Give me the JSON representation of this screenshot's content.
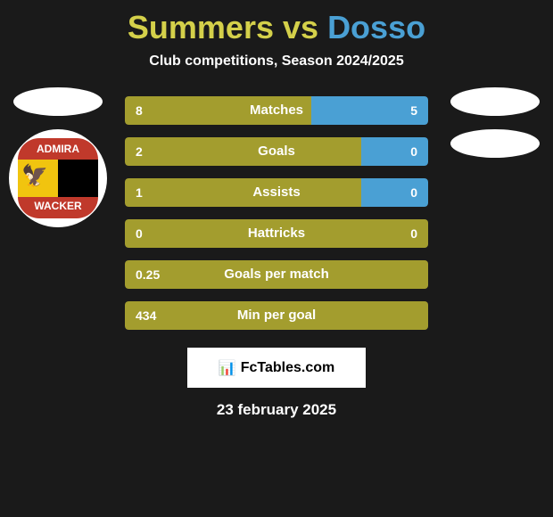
{
  "title": {
    "player1": "Summers",
    "vs": "vs",
    "player2": "Dosso"
  },
  "subtitle": "Club competitions, Season 2024/2025",
  "club_logo": {
    "top_text": "ADMIRA",
    "bottom_text": "WACKER",
    "top_bg": "#c0392b",
    "left_bg": "#f1c40f",
    "right_bg": "#000000",
    "bottom_bg": "#c0392b"
  },
  "colors": {
    "player1": "#a39d2e",
    "player2": "#4aa0d4",
    "title_p1": "#d4d04a",
    "title_p2": "#4aa0d4",
    "background": "#1a1a1a",
    "text": "#ffffff"
  },
  "bars": [
    {
      "label": "Matches",
      "val_left": "8",
      "val_right": "5",
      "left_pct": 61.5,
      "right_pct": 38.5
    },
    {
      "label": "Goals",
      "val_left": "2",
      "val_right": "0",
      "left_pct": 78,
      "right_pct": 22
    },
    {
      "label": "Assists",
      "val_left": "1",
      "val_right": "0",
      "left_pct": 78,
      "right_pct": 22
    },
    {
      "label": "Hattricks",
      "val_left": "0",
      "val_right": "0",
      "left_pct": 100,
      "right_pct": 0
    },
    {
      "label": "Goals per match",
      "val_left": "0.25",
      "val_right": "",
      "left_pct": 100,
      "right_pct": 0
    },
    {
      "label": "Min per goal",
      "val_left": "434",
      "val_right": "",
      "left_pct": 100,
      "right_pct": 0
    }
  ],
  "footer": {
    "brand_icon": "📊",
    "brand_text": "FcTables.com",
    "date": "23 february 2025"
  }
}
